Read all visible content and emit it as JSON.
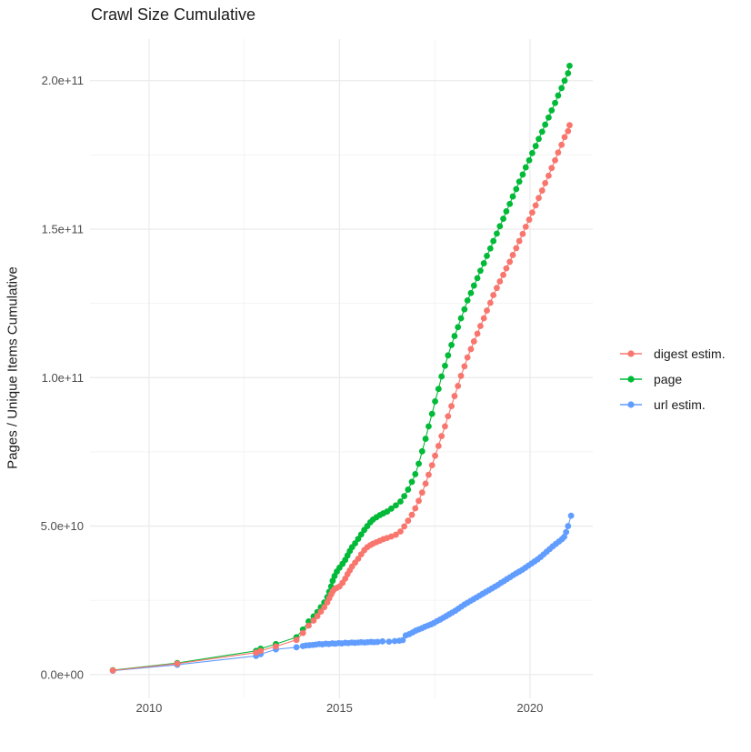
{
  "chart": {
    "title": "Crawl Size Cumulative",
    "y_axis_title": "Pages / Unique Items Cumulative"
  },
  "colors": {
    "digest_estim": "#F8766D",
    "page": "#00BA38",
    "url_estim": "#619CFF",
    "grid_major": "#EBEBEB",
    "grid_minor": "#F2F2F2",
    "tick_text": "#4D4D4D",
    "title_text": "#1A1A1A",
    "background": "#FFFFFF"
  },
  "chart_data": {
    "type": "scatter",
    "subtype": "points-with-lines",
    "title": "Crawl Size Cumulative",
    "xlabel": "",
    "ylabel": "Pages / Unique Items Cumulative",
    "values_unit_note": "point y values below are in units of 1e9 items",
    "grid": true,
    "legend_position": "right",
    "x_domain": [
      2008.45,
      2021.65
    ],
    "y_domain_e9": [
      -8,
      214
    ],
    "x_ticks": [
      {
        "v": 2010,
        "label": "2010"
      },
      {
        "v": 2015,
        "label": "2015"
      },
      {
        "v": 2020,
        "label": "2020"
      }
    ],
    "x_minor_ticks": [
      2012.5,
      2017.5
    ],
    "y_ticks": [
      {
        "v": 0,
        "label": "0.0e+00"
      },
      {
        "v": 50,
        "label": "5.0e+10"
      },
      {
        "v": 100,
        "label": "1.0e+11"
      },
      {
        "v": 150,
        "label": "1.5e+11"
      },
      {
        "v": 200,
        "label": "2.0e+11"
      }
    ],
    "y_minor_ticks": [
      25,
      75,
      125,
      175
    ],
    "series": [
      {
        "name": "digest estim.",
        "color": "#F8766D",
        "points": [
          [
            2009.05,
            1.4
          ],
          [
            2010.74,
            3.7
          ],
          [
            2012.81,
            7.4
          ],
          [
            2012.93,
            8.0
          ],
          [
            2013.33,
            9.5
          ],
          [
            2013.87,
            11.7
          ],
          [
            2014.04,
            14.0
          ],
          [
            2014.19,
            16.5
          ],
          [
            2014.32,
            18.2
          ],
          [
            2014.42,
            19.7
          ],
          [
            2014.51,
            21.2
          ],
          [
            2014.6,
            22.7
          ],
          [
            2014.68,
            24.3
          ],
          [
            2014.73,
            25.7
          ],
          [
            2014.78,
            27.0
          ],
          [
            2014.82,
            28.0
          ],
          [
            2014.87,
            28.8
          ],
          [
            2014.93,
            29.2
          ],
          [
            2015.0,
            29.7
          ],
          [
            2015.08,
            30.9
          ],
          [
            2015.15,
            32.3
          ],
          [
            2015.21,
            33.8
          ],
          [
            2015.27,
            35.1
          ],
          [
            2015.33,
            36.4
          ],
          [
            2015.41,
            37.7
          ],
          [
            2015.49,
            39.0
          ],
          [
            2015.57,
            40.5
          ],
          [
            2015.65,
            41.9
          ],
          [
            2015.73,
            42.9
          ],
          [
            2015.81,
            43.6
          ],
          [
            2015.88,
            44.1
          ],
          [
            2015.97,
            44.6
          ],
          [
            2016.06,
            45.1
          ],
          [
            2016.15,
            45.6
          ],
          [
            2016.25,
            46.0
          ],
          [
            2016.36,
            46.5
          ],
          [
            2016.48,
            47.1
          ],
          [
            2016.6,
            48.2
          ],
          [
            2016.7,
            49.9
          ],
          [
            2016.8,
            51.8
          ],
          [
            2016.9,
            53.8
          ],
          [
            2016.99,
            56.0
          ],
          [
            2017.08,
            58.5
          ],
          [
            2017.17,
            61.3
          ],
          [
            2017.26,
            64.3
          ],
          [
            2017.34,
            67.3
          ],
          [
            2017.43,
            70.5
          ],
          [
            2017.51,
            73.7
          ],
          [
            2017.6,
            77.0
          ],
          [
            2017.68,
            80.3
          ],
          [
            2017.77,
            83.6
          ],
          [
            2017.85,
            87.0
          ],
          [
            2017.94,
            90.4
          ],
          [
            2018.02,
            93.8
          ],
          [
            2018.11,
            97.2
          ],
          [
            2018.19,
            100.6
          ],
          [
            2018.28,
            103.8
          ],
          [
            2018.36,
            106.8
          ],
          [
            2018.45,
            109.6
          ],
          [
            2018.53,
            112.2
          ],
          [
            2018.62,
            114.8
          ],
          [
            2018.7,
            117.4
          ],
          [
            2018.79,
            120.0
          ],
          [
            2018.87,
            122.6
          ],
          [
            2018.96,
            125.2
          ],
          [
            2019.04,
            127.8
          ],
          [
            2019.13,
            130.2
          ],
          [
            2019.21,
            132.4
          ],
          [
            2019.3,
            134.6
          ],
          [
            2019.38,
            136.8
          ],
          [
            2019.47,
            139.0
          ],
          [
            2019.55,
            141.3
          ],
          [
            2019.64,
            143.6
          ],
          [
            2019.72,
            146.0
          ],
          [
            2019.81,
            148.4
          ],
          [
            2019.89,
            150.8
          ],
          [
            2019.98,
            153.2
          ],
          [
            2020.06,
            155.6
          ],
          [
            2020.15,
            158.0
          ],
          [
            2020.23,
            160.5
          ],
          [
            2020.32,
            163.0
          ],
          [
            2020.4,
            165.5
          ],
          [
            2020.49,
            168.0
          ],
          [
            2020.57,
            170.6
          ],
          [
            2020.66,
            173.2
          ],
          [
            2020.74,
            175.8
          ],
          [
            2020.83,
            178.4
          ],
          [
            2020.91,
            181.0
          ],
          [
            2021.0,
            183.0
          ],
          [
            2021.04,
            185.0
          ]
        ]
      },
      {
        "name": "page",
        "color": "#00BA38",
        "points": [
          [
            2009.05,
            1.5
          ],
          [
            2010.74,
            3.9
          ],
          [
            2012.81,
            8.0
          ],
          [
            2012.93,
            8.7
          ],
          [
            2013.33,
            10.3
          ],
          [
            2013.87,
            12.6
          ],
          [
            2014.04,
            15.2
          ],
          [
            2014.19,
            17.9
          ],
          [
            2014.32,
            19.6
          ],
          [
            2014.42,
            21.1
          ],
          [
            2014.51,
            22.7
          ],
          [
            2014.6,
            24.3
          ],
          [
            2014.68,
            26.1
          ],
          [
            2014.73,
            27.9
          ],
          [
            2014.78,
            29.7
          ],
          [
            2014.82,
            31.6
          ],
          [
            2014.87,
            33.2
          ],
          [
            2014.93,
            34.7
          ],
          [
            2015.0,
            36.0
          ],
          [
            2015.08,
            37.3
          ],
          [
            2015.15,
            38.6
          ],
          [
            2015.21,
            40.1
          ],
          [
            2015.27,
            41.6
          ],
          [
            2015.33,
            42.9
          ],
          [
            2015.41,
            44.2
          ],
          [
            2015.49,
            45.7
          ],
          [
            2015.57,
            47.2
          ],
          [
            2015.65,
            48.7
          ],
          [
            2015.73,
            50.0
          ],
          [
            2015.81,
            51.3
          ],
          [
            2015.88,
            52.2
          ],
          [
            2015.97,
            53.0
          ],
          [
            2016.06,
            53.7
          ],
          [
            2016.15,
            54.3
          ],
          [
            2016.25,
            54.9
          ],
          [
            2016.36,
            55.9
          ],
          [
            2016.48,
            57.0
          ],
          [
            2016.6,
            58.3
          ],
          [
            2016.7,
            60.1
          ],
          [
            2016.8,
            62.3
          ],
          [
            2016.9,
            64.9
          ],
          [
            2016.99,
            67.5
          ],
          [
            2017.08,
            71.0
          ],
          [
            2017.17,
            75.2
          ],
          [
            2017.26,
            79.4
          ],
          [
            2017.34,
            83.6
          ],
          [
            2017.43,
            87.8
          ],
          [
            2017.51,
            92.0
          ],
          [
            2017.6,
            96.2
          ],
          [
            2017.68,
            100.4
          ],
          [
            2017.77,
            104.0
          ],
          [
            2017.85,
            107.5
          ],
          [
            2017.94,
            111.0
          ],
          [
            2018.02,
            114.0
          ],
          [
            2018.11,
            117.0
          ],
          [
            2018.19,
            120.0
          ],
          [
            2018.28,
            123.0
          ],
          [
            2018.36,
            126.0
          ],
          [
            2018.45,
            128.5
          ],
          [
            2018.53,
            131.0
          ],
          [
            2018.62,
            133.5
          ],
          [
            2018.7,
            136.0
          ],
          [
            2018.79,
            138.5
          ],
          [
            2018.87,
            141.0
          ],
          [
            2018.96,
            143.5
          ],
          [
            2019.04,
            146.0
          ],
          [
            2019.13,
            148.5
          ],
          [
            2019.21,
            151.0
          ],
          [
            2019.3,
            153.5
          ],
          [
            2019.38,
            156.0
          ],
          [
            2019.47,
            158.5
          ],
          [
            2019.55,
            161.0
          ],
          [
            2019.64,
            163.5
          ],
          [
            2019.72,
            166.0
          ],
          [
            2019.81,
            168.4
          ],
          [
            2019.89,
            170.8
          ],
          [
            2019.98,
            173.2
          ],
          [
            2020.06,
            175.6
          ],
          [
            2020.15,
            178.0
          ],
          [
            2020.23,
            180.4
          ],
          [
            2020.32,
            182.8
          ],
          [
            2020.4,
            185.2
          ],
          [
            2020.49,
            187.6
          ],
          [
            2020.57,
            190.0
          ],
          [
            2020.66,
            192.5
          ],
          [
            2020.74,
            195.0
          ],
          [
            2020.83,
            197.5
          ],
          [
            2020.91,
            200.0
          ],
          [
            2021.0,
            202.5
          ],
          [
            2021.04,
            205.0
          ]
        ]
      },
      {
        "name": "url estim.",
        "color": "#619CFF",
        "points": [
          [
            2009.05,
            1.3
          ],
          [
            2010.74,
            3.3
          ],
          [
            2012.81,
            6.3
          ],
          [
            2012.93,
            6.9
          ],
          [
            2013.33,
            8.5
          ],
          [
            2013.87,
            9.2
          ],
          [
            2014.04,
            9.6
          ],
          [
            2014.12,
            9.8
          ],
          [
            2014.21,
            9.9
          ],
          [
            2014.3,
            10.0
          ],
          [
            2014.38,
            10.1
          ],
          [
            2014.47,
            10.3
          ],
          [
            2014.55,
            10.2
          ],
          [
            2014.64,
            10.4
          ],
          [
            2014.72,
            10.3
          ],
          [
            2014.81,
            10.5
          ],
          [
            2014.89,
            10.4
          ],
          [
            2014.98,
            10.6
          ],
          [
            2015.06,
            10.5
          ],
          [
            2015.15,
            10.7
          ],
          [
            2015.23,
            10.6
          ],
          [
            2015.32,
            10.8
          ],
          [
            2015.4,
            10.7
          ],
          [
            2015.49,
            10.8
          ],
          [
            2015.57,
            10.9
          ],
          [
            2015.66,
            10.8
          ],
          [
            2015.74,
            10.9
          ],
          [
            2015.83,
            11.0
          ],
          [
            2015.91,
            10.9
          ],
          [
            2016.0,
            11.0
          ],
          [
            2016.13,
            11.2
          ],
          [
            2016.3,
            11.1
          ],
          [
            2016.45,
            11.3
          ],
          [
            2016.57,
            11.4
          ],
          [
            2016.66,
            11.6
          ],
          [
            2016.74,
            13.2
          ],
          [
            2016.83,
            13.6
          ],
          [
            2016.92,
            14.2
          ],
          [
            2017.0,
            14.8
          ],
          [
            2017.08,
            15.2
          ],
          [
            2017.16,
            15.6
          ],
          [
            2017.24,
            16.1
          ],
          [
            2017.32,
            16.5
          ],
          [
            2017.4,
            16.9
          ],
          [
            2017.48,
            17.4
          ],
          [
            2017.56,
            18.0
          ],
          [
            2017.64,
            18.5
          ],
          [
            2017.72,
            19.1
          ],
          [
            2017.8,
            19.7
          ],
          [
            2017.88,
            20.3
          ],
          [
            2017.96,
            20.9
          ],
          [
            2018.04,
            21.5
          ],
          [
            2018.12,
            22.2
          ],
          [
            2018.2,
            22.9
          ],
          [
            2018.28,
            23.6
          ],
          [
            2018.36,
            24.2
          ],
          [
            2018.44,
            24.8
          ],
          [
            2018.52,
            25.4
          ],
          [
            2018.6,
            26.0
          ],
          [
            2018.68,
            26.6
          ],
          [
            2018.76,
            27.2
          ],
          [
            2018.84,
            27.8
          ],
          [
            2018.92,
            28.4
          ],
          [
            2019.0,
            29.0
          ],
          [
            2019.08,
            29.6
          ],
          [
            2019.16,
            30.2
          ],
          [
            2019.24,
            30.9
          ],
          [
            2019.32,
            31.5
          ],
          [
            2019.4,
            32.2
          ],
          [
            2019.48,
            32.8
          ],
          [
            2019.56,
            33.5
          ],
          [
            2019.64,
            34.1
          ],
          [
            2019.72,
            34.7
          ],
          [
            2019.8,
            35.3
          ],
          [
            2019.88,
            36.0
          ],
          [
            2019.96,
            36.7
          ],
          [
            2020.04,
            37.4
          ],
          [
            2020.12,
            38.1
          ],
          [
            2020.2,
            38.8
          ],
          [
            2020.28,
            39.6
          ],
          [
            2020.36,
            40.5
          ],
          [
            2020.44,
            41.4
          ],
          [
            2020.52,
            42.3
          ],
          [
            2020.6,
            43.2
          ],
          [
            2020.68,
            44.0
          ],
          [
            2020.76,
            44.8
          ],
          [
            2020.84,
            45.6
          ],
          [
            2020.9,
            46.4
          ],
          [
            2020.95,
            48.0
          ],
          [
            2021.0,
            50.0
          ],
          [
            2021.08,
            53.5
          ]
        ]
      }
    ]
  }
}
